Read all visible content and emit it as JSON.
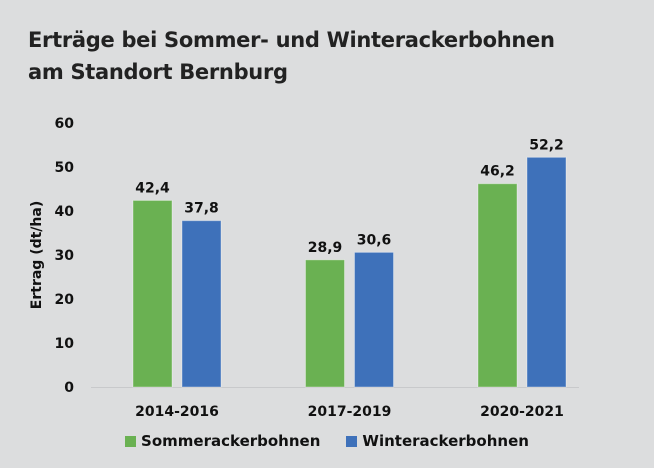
{
  "chart_data": {
    "type": "bar",
    "title": "Erträge bei Sommer- und Winterackerbohnen am Standort Bernburg",
    "title_lines": [
      "Erträge bei Sommer- und Winterackerbohnen",
      "am Standort Bernburg"
    ],
    "xlabel": "",
    "ylabel": "Ertrag (dt/ha)",
    "ylim": [
      0,
      60
    ],
    "yticks": [
      0,
      10,
      20,
      30,
      40,
      50,
      60
    ],
    "grid": false,
    "legend_position": "bottom",
    "categories": [
      "2014-2016",
      "2017-2019",
      "2020-2021"
    ],
    "series": [
      {
        "name": "Sommerackerbohnen",
        "color": "#6ab152",
        "values": [
          42.4,
          28.9,
          46.2
        ],
        "labels": [
          "42,4",
          "28,9",
          "46,2"
        ]
      },
      {
        "name": "Winterackerbohnen",
        "color": "#3e71ba",
        "values": [
          37.8,
          30.6,
          52.2
        ],
        "labels": [
          "37,8",
          "30,6",
          "52,2"
        ]
      }
    ]
  }
}
